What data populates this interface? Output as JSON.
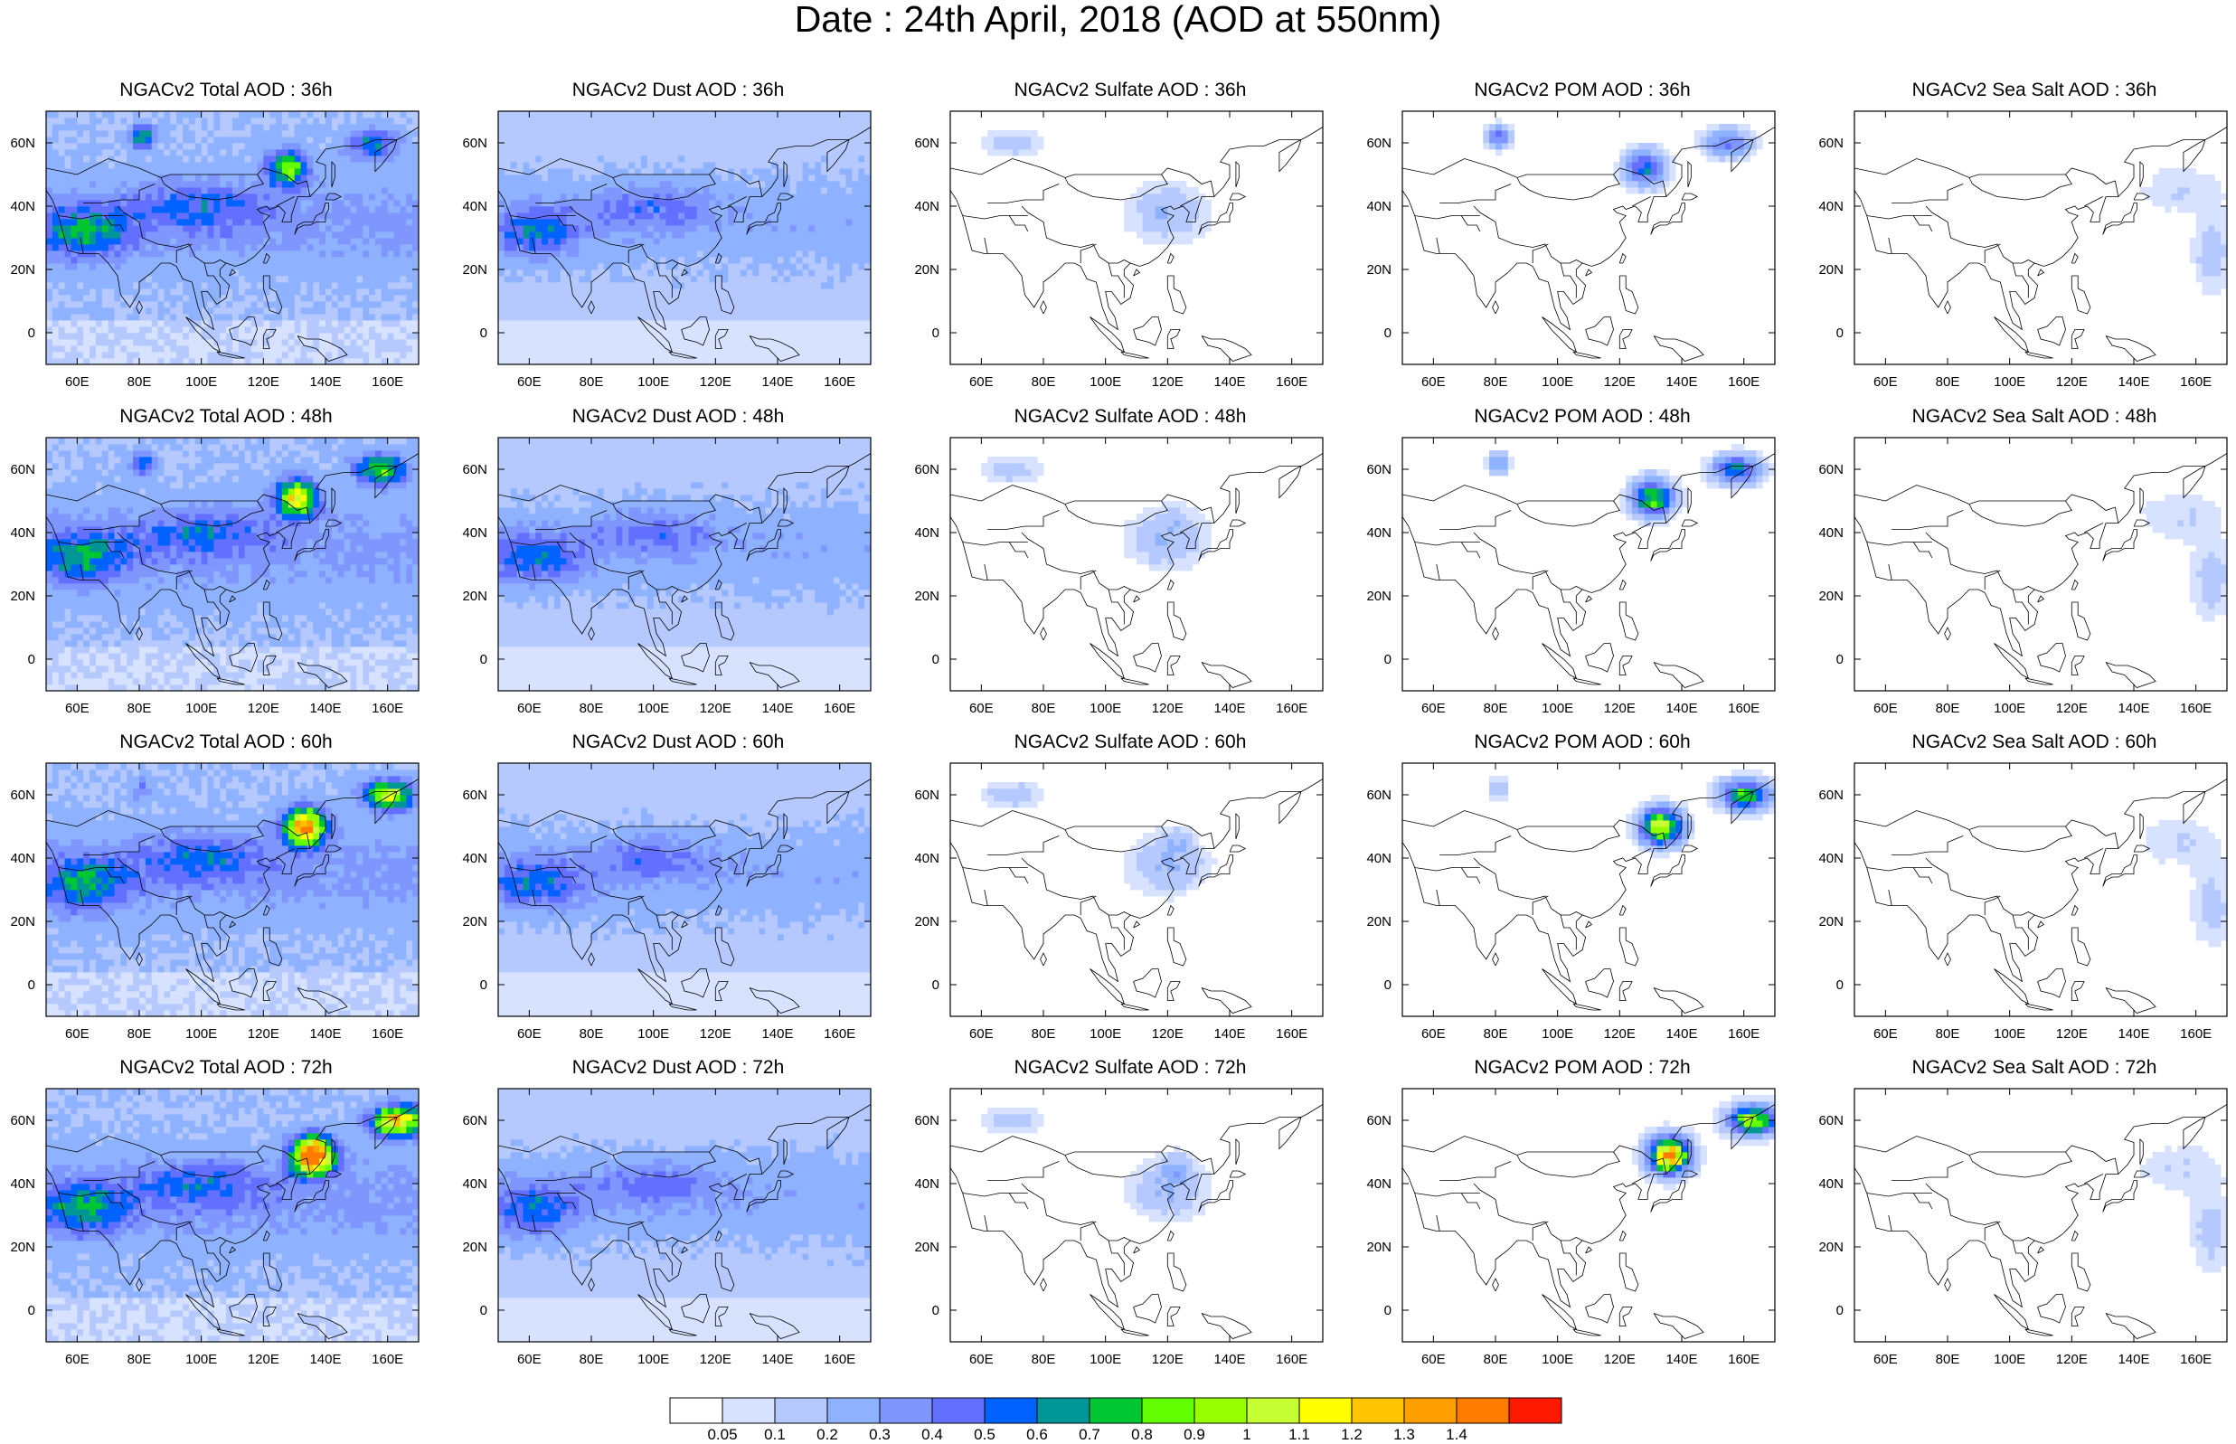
{
  "title": "Date : 24th April, 2018 (AOD at 550nm)",
  "panels": [
    {
      "title": "NGACv2 Total AOD : 36h",
      "species": "total",
      "hour": 36
    },
    {
      "title": "NGACv2 Dust AOD : 36h",
      "species": "dust",
      "hour": 36
    },
    {
      "title": "NGACv2 Sulfate AOD : 36h",
      "species": "sulfate",
      "hour": 36
    },
    {
      "title": "NGACv2 POM AOD : 36h",
      "species": "pom",
      "hour": 36
    },
    {
      "title": "NGACv2 Sea Salt AOD : 36h",
      "species": "seasalt",
      "hour": 36
    },
    {
      "title": "NGACv2 Total AOD : 48h",
      "species": "total",
      "hour": 48
    },
    {
      "title": "NGACv2 Dust AOD : 48h",
      "species": "dust",
      "hour": 48
    },
    {
      "title": "NGACv2 Sulfate AOD : 48h",
      "species": "sulfate",
      "hour": 48
    },
    {
      "title": "NGACv2 POM AOD : 48h",
      "species": "pom",
      "hour": 48
    },
    {
      "title": "NGACv2 Sea Salt AOD : 48h",
      "species": "seasalt",
      "hour": 48
    },
    {
      "title": "NGACv2 Total AOD : 60h",
      "species": "total",
      "hour": 60
    },
    {
      "title": "NGACv2 Dust AOD : 60h",
      "species": "dust",
      "hour": 60
    },
    {
      "title": "NGACv2 Sulfate AOD : 60h",
      "species": "sulfate",
      "hour": 60
    },
    {
      "title": "NGACv2 POM AOD : 60h",
      "species": "pom",
      "hour": 60
    },
    {
      "title": "NGACv2 Sea Salt AOD : 60h",
      "species": "seasalt",
      "hour": 60
    },
    {
      "title": "NGACv2 Total AOD : 72h",
      "species": "total",
      "hour": 72
    },
    {
      "title": "NGACv2 Dust AOD : 72h",
      "species": "dust",
      "hour": 72
    },
    {
      "title": "NGACv2 Sulfate AOD : 72h",
      "species": "sulfate",
      "hour": 72
    },
    {
      "title": "NGACv2 POM AOD : 72h",
      "species": "pom",
      "hour": 72
    },
    {
      "title": "NGACv2 Sea Salt  AOD : 72h",
      "species": "seasalt",
      "hour": 72
    }
  ],
  "map_extent": {
    "lon": [
      50,
      170
    ],
    "lat": [
      -10,
      70
    ]
  },
  "x_ticks": [
    "60E",
    "80E",
    "100E",
    "120E",
    "140E",
    "160E"
  ],
  "x_tick_values": [
    60,
    80,
    100,
    120,
    140,
    160
  ],
  "y_ticks": [
    "60N",
    "40N",
    "20N",
    "0"
  ],
  "y_tick_values": [
    60,
    40,
    20,
    0
  ],
  "colorbar": {
    "colors": [
      "#ffffff",
      "#d6e2ff",
      "#b5c9ff",
      "#8eb2ff",
      "#7f96ff",
      "#6370ff",
      "#0063ff",
      "#009696",
      "#00c633",
      "#63ff00",
      "#96ff00",
      "#c6ff33",
      "#ffff00",
      "#ffc600",
      "#ffa000",
      "#ff7c00",
      "#ff1900"
    ],
    "labels": [
      "0.05",
      "0.1",
      "0.2",
      "0.3",
      "0.4",
      "0.5",
      "0.6",
      "0.7",
      "0.8",
      "0.9",
      "1",
      "1.1",
      "1.2",
      "1.3",
      "1.4"
    ]
  }
}
